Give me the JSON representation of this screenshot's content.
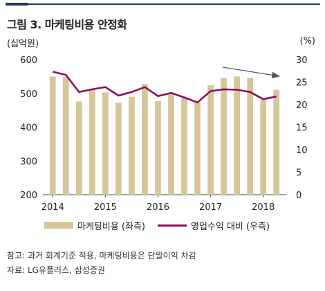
{
  "header": {
    "title": "그림 3. 마케팅비용 안정화",
    "unit_left": "(십억원)",
    "unit_right": "(%)"
  },
  "legend": {
    "bar_label": "마케팅비용 (좌측)",
    "line_label": "영업수익 대비 (우측)"
  },
  "notes": {
    "note": "참고: 과거 회계기준 적용, 마케팅비용은 단말이익 차감",
    "source": "자료: LG유플러스, 삼성증권"
  },
  "colors": {
    "bar": "#d6c69a",
    "line": "#8b0e5e",
    "arrow": "#555555",
    "axis": "#444444"
  },
  "chart_data": {
    "type": "bar",
    "x_tick_labels": [
      "2014",
      "2015",
      "2016",
      "2017",
      "2018"
    ],
    "left_axis": {
      "ylim": [
        200,
        600
      ],
      "ticks": [
        "200",
        "300",
        "400",
        "500",
        "600"
      ]
    },
    "right_axis": {
      "ylim": [
        0,
        30
      ],
      "ticks": [
        "0",
        "5",
        "10",
        "15",
        "20",
        "25",
        "30"
      ]
    },
    "series": [
      {
        "name": "마케팅비용 (좌측)",
        "type": "bar",
        "axis": "left",
        "values": [
          550,
          548,
          476,
          514,
          503,
          473,
          490,
          528,
          477,
          500,
          487,
          474,
          524,
          545,
          550,
          546,
          480,
          511
        ]
      },
      {
        "name": "영업수익 대비 (우측)",
        "type": "line",
        "axis": "right",
        "values": [
          27.3,
          26.6,
          22.8,
          23.4,
          23.9,
          22.0,
          22.8,
          23.9,
          21.9,
          22.6,
          21.6,
          20.5,
          23.0,
          23.4,
          23.3,
          22.8,
          21.2,
          21.8
        ]
      }
    ],
    "annotation": "downward-trend-arrow"
  }
}
